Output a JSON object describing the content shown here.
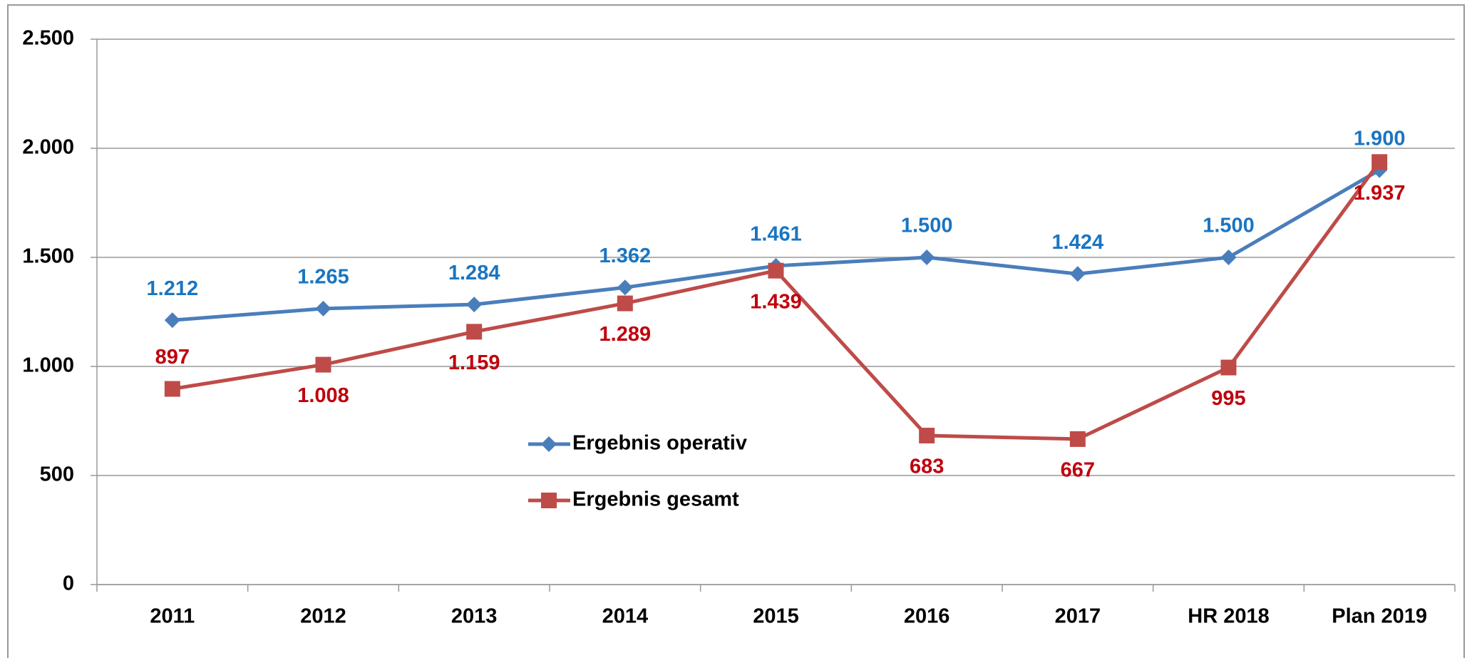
{
  "chart_data": {
    "type": "line",
    "categories": [
      "2011",
      "2012",
      "2013",
      "2014",
      "2015",
      "2016",
      "2017",
      "HR 2018",
      "Plan 2019"
    ],
    "series": [
      {
        "name": "Ergebnis operativ",
        "color": "#4a7ebb",
        "label_color": "#1a75c2",
        "values": [
          1212,
          1265,
          1284,
          1362,
          1461,
          1500,
          1424,
          1500,
          1900
        ],
        "value_labels": [
          "1.212",
          "1.265",
          "1.284",
          "1.362",
          "1.461",
          "1.500",
          "1.424",
          "1.500",
          "1.900"
        ]
      },
      {
        "name": "Ergebnis gesamt",
        "color": "#be4b48",
        "label_color": "#c0000c",
        "values": [
          897,
          1008,
          1159,
          1289,
          1439,
          683,
          667,
          995,
          1937
        ],
        "value_labels": [
          "897",
          "1.008",
          "1.159",
          "1.289",
          "1.439",
          "683",
          "667",
          "995",
          "1.937"
        ]
      }
    ],
    "ylim": [
      0,
      2500
    ],
    "yticks": [
      0,
      500,
      {
        "value": 1000,
        "label": "1.000"
      },
      {
        "value": 1500,
        "label": "1.500"
      },
      {
        "value": 2000,
        "label": "2.000"
      },
      {
        "value": 2500,
        "label": "2.500"
      }
    ],
    "grid": true
  }
}
